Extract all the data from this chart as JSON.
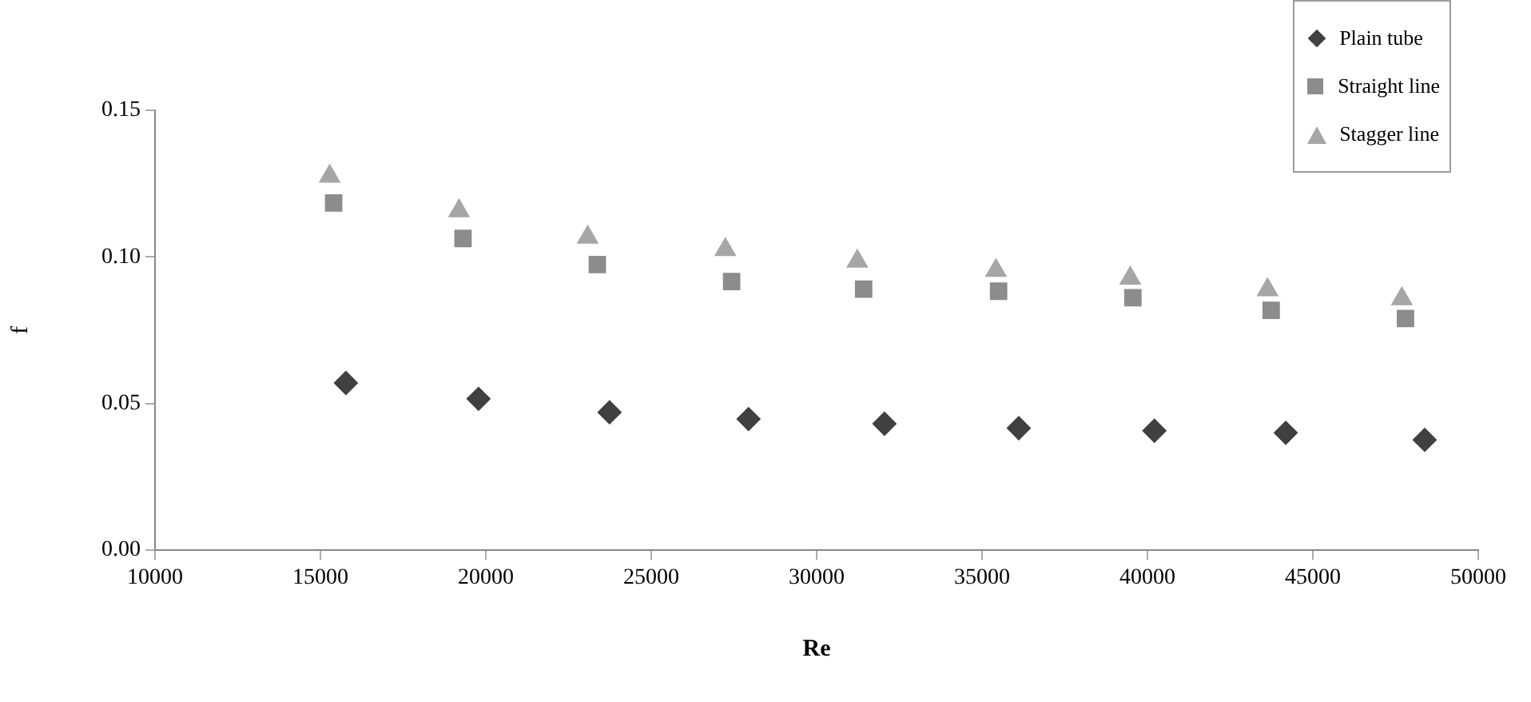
{
  "chart_data": {
    "type": "scatter",
    "xlabel": "Re",
    "ylabel": "f",
    "xlim": [
      10000,
      50000
    ],
    "xticks": [
      10000,
      15000,
      20000,
      25000,
      30000,
      35000,
      40000,
      45000,
      50000
    ],
    "ylim": [
      0,
      0.15
    ],
    "yticks": [
      {
        "value": 0,
        "label": "0.00"
      },
      {
        "value": 0.05,
        "label": "0.05"
      },
      {
        "value": 0.1,
        "label": "0.10"
      },
      {
        "value": 0.15,
        "label": "0.15"
      }
    ],
    "grid": false,
    "legend": "top right",
    "series": [
      {
        "name": "Plain tube",
        "color": "#404040",
        "marker": "diamond",
        "x": [
          15770,
          19780,
          23740,
          27940,
          32050,
          36110,
          40210,
          44180,
          48380
        ],
        "values": [
          0.057,
          0.0516,
          0.047,
          0.0447,
          0.0431,
          0.0416,
          0.0407,
          0.04,
          0.0376
        ]
      },
      {
        "name": "Straight line",
        "color": "#8c8c8c",
        "marker": "square",
        "x": [
          15400,
          19310,
          23370,
          27430,
          31420,
          35500,
          39560,
          43740,
          47800
        ],
        "values": [
          0.1184,
          0.1063,
          0.0974,
          0.0916,
          0.089,
          0.0883,
          0.0861,
          0.0818,
          0.079
        ]
      },
      {
        "name": "Stagger line",
        "color": "#a6a6a6",
        "marker": "triangle",
        "x": [
          15280,
          19190,
          23080,
          27240,
          31230,
          35420,
          39480,
          43630,
          47690
        ],
        "values": [
          0.1275,
          0.1157,
          0.1067,
          0.1025,
          0.0985,
          0.0954,
          0.0927,
          0.0888,
          0.0857
        ]
      }
    ]
  }
}
